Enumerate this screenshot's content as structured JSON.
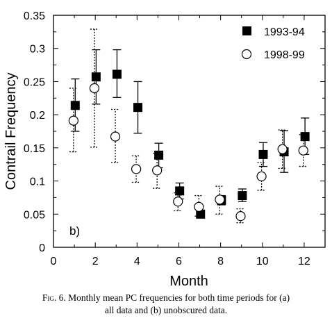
{
  "chart_data": {
    "type": "scatter",
    "xlabel": "Month",
    "ylabel": "Contrail Frequency",
    "xlim": [
      0,
      13
    ],
    "ylim": [
      0,
      0.35
    ],
    "xticks": [
      "0",
      "2",
      "4",
      "6",
      "8",
      "10",
      "12"
    ],
    "yticks": [
      "0",
      "0.05",
      "0.1",
      "0.15",
      "0.2",
      "0.25",
      "0.3",
      "0.35"
    ],
    "xtick_values": [
      0,
      2,
      4,
      6,
      8,
      10,
      12
    ],
    "ytick_values": [
      0,
      0.05,
      0.1,
      0.15,
      0.2,
      0.25,
      0.3,
      0.35
    ],
    "panel_label": "b)",
    "legend_position": "top-right",
    "series": [
      {
        "name": "1993-94",
        "marker": "filled-square",
        "error_style": "solid",
        "color": "#000000",
        "x": [
          1,
          2,
          3,
          4,
          5,
          6,
          7,
          8,
          9,
          10,
          11,
          12
        ],
        "y": [
          0.214,
          0.257,
          0.261,
          0.211,
          0.139,
          0.085,
          0.05,
          0.071,
          0.078,
          0.14,
          0.144,
          0.167
        ],
        "err_low": [
          0.175,
          0.216,
          0.226,
          0.172,
          0.12,
          0.073,
          0.046,
          0.064,
          0.069,
          0.122,
          0.113,
          0.14
        ],
        "err_high": [
          0.254,
          0.298,
          0.298,
          0.25,
          0.157,
          0.097,
          0.055,
          0.078,
          0.088,
          0.158,
          0.176,
          0.195
        ]
      },
      {
        "name": "1998-99",
        "marker": "open-circle",
        "error_style": "dotted",
        "color": "#000000",
        "x": [
          1,
          2,
          3,
          4,
          5,
          6,
          7,
          8,
          9,
          10,
          11,
          12
        ],
        "y": [
          0.191,
          0.24,
          0.167,
          0.118,
          0.116,
          0.069,
          0.061,
          0.072,
          0.047,
          0.107,
          0.148,
          0.146
        ],
        "err_low": [
          0.144,
          0.151,
          0.128,
          0.098,
          0.089,
          0.055,
          0.047,
          0.05,
          0.037,
          0.086,
          0.119,
          0.122
        ],
        "err_high": [
          0.24,
          0.329,
          0.208,
          0.138,
          0.142,
          0.082,
          0.078,
          0.092,
          0.058,
          0.128,
          0.177,
          0.17
        ]
      }
    ]
  },
  "caption": {
    "fig_label": "Fig. 6.",
    "text_line1": "Monthly mean PC frequencies for both time periods for (a)",
    "text_line2": "all data and (b) unobscured data."
  }
}
